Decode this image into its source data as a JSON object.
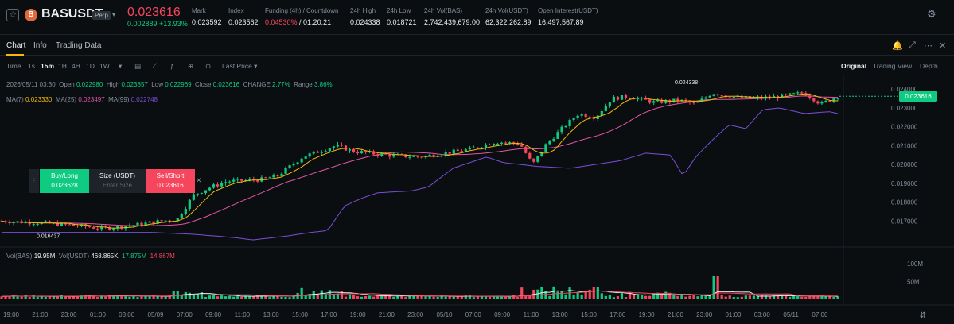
{
  "header": {
    "star_glyph": "☆",
    "coin_glyph": "B",
    "symbol": "BASUSDT",
    "badge": "Perp",
    "caret": "▾",
    "last_price": "0.023616",
    "change": "0.002889 +13.93%",
    "stats": [
      {
        "label": "Mark",
        "value": "0.023592"
      },
      {
        "label": "Index",
        "value": "0.023562"
      },
      {
        "label": "Funding (4h) / Countdown",
        "value_red": "0.04530%",
        "value_rest": " / 01:20:21"
      },
      {
        "label": "24h High",
        "value": "0.024338"
      },
      {
        "label": "24h Low",
        "value": "0.018721"
      },
      {
        "label": "24h Vol(BAS)",
        "value": "2,742,439,679.00"
      },
      {
        "label": "24h Vol(USDT)",
        "value": "62,322,262.89"
      },
      {
        "label": "Open Interest(USDT)",
        "value": "16,497,567.89"
      }
    ],
    "settings_glyph": "⚙"
  },
  "tabs": [
    {
      "label": "Chart",
      "active": true
    },
    {
      "label": "Info",
      "active": false
    },
    {
      "label": "Trading Data",
      "active": false
    }
  ],
  "tab_icons": [
    "🔔",
    "⤢",
    "⋯",
    "✕"
  ],
  "toolbar": {
    "intervals": [
      "Time",
      "1s",
      "15m",
      "1H",
      "4H",
      "1D",
      "1W"
    ],
    "selected_interval": "15m",
    "more_caret": "▾",
    "icons": [
      "▤",
      "⟋",
      "ƒ",
      "⊕",
      "⊙"
    ],
    "price_type": "Last Price ▾",
    "views": [
      "Original",
      "Trading View",
      "Depth"
    ],
    "selected_view": "Original"
  },
  "ohlc": {
    "time": "2026/05/11 03:30",
    "open_label": "Open",
    "open": "0.022980",
    "high_label": "High",
    "high": "0.023857",
    "low_label": "Low",
    "low": "0.022969",
    "close_label": "Close",
    "close": "0.023616",
    "change_label": "CHANGE",
    "change": "2.77%",
    "range_label": "Range",
    "range": "3.86%"
  },
  "ma": {
    "ma7_label": "MA(7)",
    "ma7": "0.023330",
    "ma25_label": "MA(25)",
    "ma25": "0.023497",
    "ma99_label": "MA(99)",
    "ma99": "0.022748"
  },
  "volume_legend": {
    "label": "Vol(BAS)",
    "bas": "19.95M",
    "usdt_label": "Vol(USDT)",
    "usdt": "468.865K",
    "ma1": "17.875M",
    "ma2": "14.867M"
  },
  "order_panel": {
    "buy_label": "Buy/Long",
    "buy_price": "0.023628",
    "size_label": "Size (USDT)",
    "size_placeholder": "Enter Size",
    "sell_label": "Sell/Short",
    "sell_price": "0.023616",
    "close_glyph": "✕",
    "grip_glyph": "⋮"
  },
  "colors": {
    "up": "#0ecb81",
    "down": "#f6465d",
    "ma7": "#f0b90b",
    "ma25": "#e254a6",
    "ma99": "#7b4fd6",
    "background": "#0b0e11"
  },
  "chart_data": {
    "type": "candlestick",
    "price_axis": [
      "0.024000",
      "0.023000",
      "0.022000",
      "0.021000",
      "0.020000",
      "0.019000",
      "0.018000",
      "0.017000"
    ],
    "price_range": [
      0.0163,
      0.0243
    ],
    "current_price_label": "0.023616",
    "high_marker": "0.024338",
    "low_marker": "0.016437",
    "volume_axis": [
      "100M",
      "50M"
    ],
    "volume_range": [
      0,
      120
    ],
    "time_axis": [
      "19:00",
      "21:00",
      "23:00",
      "01:00",
      "03:00",
      "05/09",
      "07:00",
      "09:00",
      "11:00",
      "13:00",
      "15:00",
      "17:00",
      "19:00",
      "21:00",
      "23:00",
      "05/10",
      "07:00",
      "09:00",
      "11:00",
      "13:00",
      "15:00",
      "17:00",
      "19:00",
      "21:00",
      "23:00",
      "01:00",
      "03:00",
      "05/11",
      "07:00"
    ],
    "bottom_icon": "⇵",
    "price_path": [
      [
        0,
        0.017
      ],
      [
        0.05,
        0.0169
      ],
      [
        0.1,
        0.01672
      ],
      [
        0.12,
        0.0166
      ],
      [
        0.16,
        0.0168
      ],
      [
        0.19,
        0.017
      ],
      [
        0.21,
        0.0171
      ],
      [
        0.23,
        0.0184
      ],
      [
        0.25,
        0.0188
      ],
      [
        0.27,
        0.0191
      ],
      [
        0.31,
        0.0192
      ],
      [
        0.33,
        0.0194
      ],
      [
        0.36,
        0.0204
      ],
      [
        0.38,
        0.0207
      ],
      [
        0.4,
        0.021
      ],
      [
        0.42,
        0.0207
      ],
      [
        0.46,
        0.0205
      ],
      [
        0.5,
        0.0204
      ],
      [
        0.53,
        0.0206
      ],
      [
        0.56,
        0.0208
      ],
      [
        0.59,
        0.0212
      ],
      [
        0.62,
        0.0211
      ],
      [
        0.635,
        0.02
      ],
      [
        0.65,
        0.021
      ],
      [
        0.67,
        0.0219
      ],
      [
        0.69,
        0.0227
      ],
      [
        0.71,
        0.0225
      ],
      [
        0.73,
        0.0235
      ],
      [
        0.75,
        0.0236
      ],
      [
        0.78,
        0.0233
      ],
      [
        0.81,
        0.0234
      ],
      [
        0.83,
        0.0232
      ],
      [
        0.85,
        0.0238
      ],
      [
        0.87,
        0.0236
      ],
      [
        0.9,
        0.0235
      ],
      [
        0.93,
        0.0236
      ],
      [
        0.96,
        0.0238
      ],
      [
        0.98,
        0.0232
      ],
      [
        1.0,
        0.02362
      ]
    ]
  }
}
